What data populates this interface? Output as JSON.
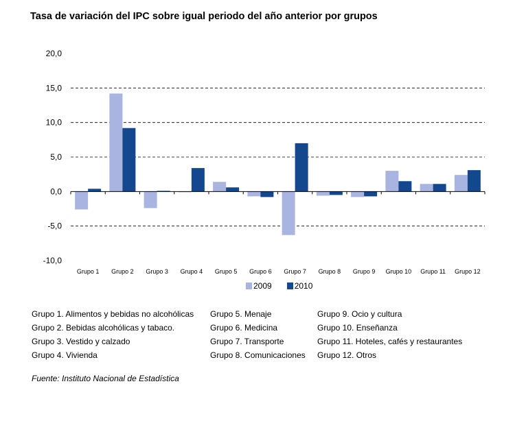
{
  "title": "Tasa de variación del IPC sobre igual periodo del año anterior por grupos",
  "chart_data": {
    "type": "bar",
    "title": "Tasa de variación del IPC sobre igual periodo del año anterior por grupos",
    "categories": [
      "Grupo 1",
      "Grupo 2",
      "Grupo 3",
      "Grupo 4",
      "Grupo 5",
      "Grupo 6",
      "Grupo 7",
      "Grupo 8",
      "Grupo 9",
      "Grupo 10",
      "Grupo 11",
      "Grupo 12"
    ],
    "series": [
      {
        "name": "2009",
        "color": "#a9b5e0",
        "values": [
          -2.6,
          14.2,
          -2.4,
          0.0,
          1.4,
          -0.7,
          -6.3,
          -0.6,
          -0.8,
          3.0,
          1.1,
          2.4
        ]
      },
      {
        "name": "2010",
        "color": "#13478e",
        "values": [
          0.4,
          9.2,
          0.1,
          3.4,
          0.6,
          -0.8,
          7.0,
          -0.5,
          -0.7,
          1.5,
          1.1,
          3.1
        ]
      }
    ],
    "ylim": [
      -10,
      20
    ],
    "yticks": [
      "-10,0",
      "-5,0",
      "0,0",
      "5,0",
      "10,0",
      "15,0",
      "20,0"
    ],
    "gridlines": "dashed",
    "legend_position": "bottom"
  },
  "groups": [
    [
      "Grupo 1. Alimentos y bebidas no alcohólicas",
      "Grupo 2. Bebidas alcohólicas y  tabaco.",
      "Grupo 3. Vestido y calzado",
      "Grupo 4. Vivienda"
    ],
    [
      "Grupo 5. Menaje",
      "Grupo 6. Medicina",
      "Grupo 7. Transporte",
      "Grupo 8. Comunicaciones"
    ],
    [
      "Grupo 9. Ocio y cultura",
      "Grupo 10. Enseñanza",
      "Grupo 11. Hoteles, cafés y restaurantes",
      "Grupo 12. Otros"
    ]
  ],
  "source": "Fuente: Instituto Nacional de Estadística"
}
